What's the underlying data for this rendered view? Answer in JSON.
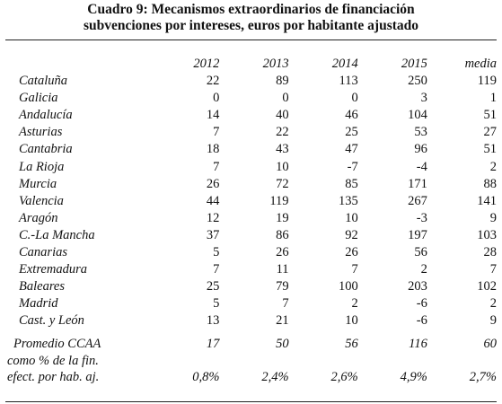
{
  "title": {
    "line1": "Cuadro 9: Mecanismos extraordinarios de financiación",
    "line2": "subvenciones por intereses, euros por habitante ajustado"
  },
  "table": {
    "columns": [
      "2012",
      "2013",
      "2014",
      "2015",
      "media"
    ],
    "rows": [
      {
        "region": "Cataluña",
        "values": [
          "22",
          "89",
          "113",
          "250",
          "119"
        ]
      },
      {
        "region": "Galicia",
        "values": [
          "0",
          "0",
          "0",
          "3",
          "1"
        ]
      },
      {
        "region": "Andalucía",
        "values": [
          "14",
          "40",
          "46",
          "104",
          "51"
        ]
      },
      {
        "region": "Asturias",
        "values": [
          "7",
          "22",
          "25",
          "53",
          "27"
        ]
      },
      {
        "region": "Cantabria",
        "values": [
          "18",
          "43",
          "47",
          "96",
          "51"
        ]
      },
      {
        "region": "La Rioja",
        "values": [
          "7",
          "10",
          "-7",
          "-4",
          "2"
        ]
      },
      {
        "region": "Murcia",
        "values": [
          "26",
          "72",
          "85",
          "171",
          "88"
        ]
      },
      {
        "region": "Valencia",
        "values": [
          "44",
          "119",
          "135",
          "267",
          "141"
        ]
      },
      {
        "region": "Aragón",
        "values": [
          "12",
          "19",
          "10",
          "-3",
          "9"
        ]
      },
      {
        "region": "C.-La Mancha",
        "values": [
          "37",
          "86",
          "92",
          "197",
          "103"
        ]
      },
      {
        "region": "Canarias",
        "values": [
          "5",
          "26",
          "26",
          "56",
          "28"
        ]
      },
      {
        "region": "Extremadura",
        "values": [
          "7",
          "11",
          "7",
          "2",
          "7"
        ]
      },
      {
        "region": "Baleares",
        "values": [
          "25",
          "79",
          "100",
          "203",
          "102"
        ]
      },
      {
        "region": "Madrid",
        "values": [
          "5",
          "7",
          "2",
          "-6",
          "2"
        ]
      },
      {
        "region": "Cast. y León",
        "values": [
          "13",
          "21",
          "10",
          "-6",
          "9"
        ]
      }
    ],
    "average": {
      "label": "Promedio CCAA",
      "values": [
        "17",
        "50",
        "56",
        "116",
        "60"
      ]
    },
    "percent": {
      "label_line1": "como % de la fin.",
      "label_line2": "efect. por hab. aj.",
      "values": [
        "0,8%",
        "2,4%",
        "2,6%",
        "4,9%",
        "2,7%"
      ]
    }
  }
}
